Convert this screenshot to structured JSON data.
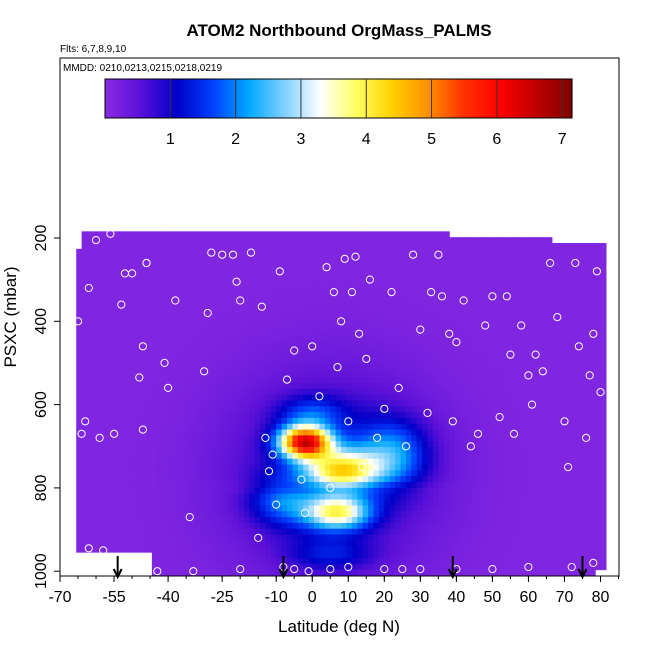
{
  "chart_data": {
    "type": "heatmap",
    "title": "ATOM2 Northbound OrgMass_PALMS",
    "subtitle_flights": "Flts: 6,7,8,9,10",
    "subtitle_dates": "MMDD: 0210,0213,0215,0218,0219",
    "xlabel": "Latitude (deg N)",
    "ylabel": "PSXC (mbar)",
    "xlim": [
      -70,
      85
    ],
    "ylim": [
      1010,
      0
    ],
    "x_ticks": [
      -70,
      -55,
      -40,
      -25,
      -10,
      0,
      10,
      20,
      30,
      40,
      50,
      60,
      70,
      80
    ],
    "x_tick_labels": [
      "-70",
      "-55",
      "-40",
      "-25",
      "-10",
      "0",
      "10",
      "20",
      "30",
      "40",
      "50",
      "60",
      "70",
      "80"
    ],
    "y_ticks": [
      200,
      400,
      600,
      800,
      1000
    ],
    "y_tick_labels": [
      "200",
      "400",
      "600",
      "800",
      "1000"
    ],
    "colorbar": {
      "min": 0,
      "max": 7.15,
      "ticks": [
        1,
        2,
        3,
        4,
        5,
        6,
        7
      ],
      "tick_labels": [
        "1",
        "2",
        "3",
        "4",
        "5",
        "6",
        "7"
      ],
      "colors": [
        "#8a2be2",
        "#5a10d8",
        "#0000c8",
        "#0040ff",
        "#00a8ff",
        "#80d0ff",
        "#ffffff",
        "#ffff60",
        "#ffd000",
        "#ff9000",
        "#ff3000",
        "#ff0000",
        "#c00000",
        "#800000"
      ]
    },
    "profile_markers_lat": [
      -54,
      -8,
      39,
      75
    ],
    "profiles": [
      {
        "lat": -67,
        "p": 235
      },
      {
        "lat": -66,
        "p": 215
      },
      {
        "lat": -65,
        "p": 400
      },
      {
        "lat": -64,
        "p": 670
      },
      {
        "lat": -63,
        "p": 640
      },
      {
        "lat": -62,
        "p": 945
      },
      {
        "lat": -62,
        "p": 320
      },
      {
        "lat": -60,
        "p": 205
      },
      {
        "lat": -59,
        "p": 680
      },
      {
        "lat": -58,
        "p": 950
      },
      {
        "lat": -56,
        "p": 190
      },
      {
        "lat": -55,
        "p": 670
      },
      {
        "lat": -53,
        "p": 360
      },
      {
        "lat": -52,
        "p": 285
      },
      {
        "lat": -50,
        "p": 285
      },
      {
        "lat": -48,
        "p": 535
      },
      {
        "lat": -47,
        "p": 460
      },
      {
        "lat": -47,
        "p": 660
      },
      {
        "lat": -46,
        "p": 260
      },
      {
        "lat": -46,
        "p": 260
      },
      {
        "lat": -41,
        "p": 500
      },
      {
        "lat": -40,
        "p": 560
      },
      {
        "lat": -38,
        "p": 350
      },
      {
        "lat": -34,
        "p": 870
      },
      {
        "lat": -30,
        "p": 520
      },
      {
        "lat": -29,
        "p": 380
      },
      {
        "lat": -28,
        "p": 235
      },
      {
        "lat": -25,
        "p": 240
      },
      {
        "lat": -22,
        "p": 240
      },
      {
        "lat": -21,
        "p": 305
      },
      {
        "lat": -20,
        "p": 350
      },
      {
        "lat": -17,
        "p": 235
      },
      {
        "lat": -15,
        "p": 920
      },
      {
        "lat": -14,
        "p": 365
      },
      {
        "lat": -13,
        "p": 680
      },
      {
        "lat": -12,
        "p": 760
      },
      {
        "lat": -11,
        "p": 720
      },
      {
        "lat": -10,
        "p": 840
      },
      {
        "lat": -9,
        "p": 280
      },
      {
        "lat": -7,
        "p": 540
      },
      {
        "lat": -5,
        "p": 470
      },
      {
        "lat": -3,
        "p": 780
      },
      {
        "lat": -2,
        "p": 860
      },
      {
        "lat": 0,
        "p": 460
      },
      {
        "lat": 2,
        "p": 580
      },
      {
        "lat": 4,
        "p": 270
      },
      {
        "lat": 5,
        "p": 800
      },
      {
        "lat": 6,
        "p": 330
      },
      {
        "lat": 7,
        "p": 510
      },
      {
        "lat": 8,
        "p": 400
      },
      {
        "lat": 9,
        "p": 250
      },
      {
        "lat": 10,
        "p": 640
      },
      {
        "lat": 11,
        "p": 330
      },
      {
        "lat": 12,
        "p": 245
      },
      {
        "lat": 13,
        "p": 430
      },
      {
        "lat": 14,
        "p": 750
      },
      {
        "lat": 15,
        "p": 490
      },
      {
        "lat": 16,
        "p": 300
      },
      {
        "lat": 18,
        "p": 680
      },
      {
        "lat": 20,
        "p": 610
      },
      {
        "lat": 22,
        "p": 330
      },
      {
        "lat": 24,
        "p": 560
      },
      {
        "lat": 26,
        "p": 700
      },
      {
        "lat": 28,
        "p": 240
      },
      {
        "lat": 30,
        "p": 420
      },
      {
        "lat": 32,
        "p": 620
      },
      {
        "lat": 33,
        "p": 330
      },
      {
        "lat": 35,
        "p": 240
      },
      {
        "lat": 36,
        "p": 340
      },
      {
        "lat": 38,
        "p": 430
      },
      {
        "lat": 39,
        "p": 640
      },
      {
        "lat": 40,
        "p": 450
      },
      {
        "lat": 42,
        "p": 350
      },
      {
        "lat": 44,
        "p": 700
      },
      {
        "lat": 46,
        "p": 670
      },
      {
        "lat": 48,
        "p": 410
      },
      {
        "lat": 50,
        "p": 340
      },
      {
        "lat": 52,
        "p": 630
      },
      {
        "lat": 54,
        "p": 340
      },
      {
        "lat": 55,
        "p": 480
      },
      {
        "lat": 56,
        "p": 670
      },
      {
        "lat": 58,
        "p": 410
      },
      {
        "lat": 60,
        "p": 530
      },
      {
        "lat": 61,
        "p": 600
      },
      {
        "lat": 62,
        "p": 480
      },
      {
        "lat": 64,
        "p": 520
      },
      {
        "lat": 66,
        "p": 260
      },
      {
        "lat": 68,
        "p": 390
      },
      {
        "lat": 70,
        "p": 640
      },
      {
        "lat": 71,
        "p": 750
      },
      {
        "lat": 73,
        "p": 260
      },
      {
        "lat": 74,
        "p": 460
      },
      {
        "lat": 76,
        "p": 680
      },
      {
        "lat": 77,
        "p": 530
      },
      {
        "lat": 78,
        "p": 430
      },
      {
        "lat": 79,
        "p": 280
      },
      {
        "lat": 80,
        "p": 570
      },
      {
        "lat": 78,
        "p": 980
      },
      {
        "lat": 72,
        "p": 990
      },
      {
        "lat": 60,
        "p": 990
      },
      {
        "lat": 50,
        "p": 995
      },
      {
        "lat": 40,
        "p": 995
      },
      {
        "lat": 30,
        "p": 995
      },
      {
        "lat": 25,
        "p": 995
      },
      {
        "lat": 20,
        "p": 995
      },
      {
        "lat": 10,
        "p": 990
      },
      {
        "lat": 5,
        "p": 995
      },
      {
        "lat": -1,
        "p": 1000
      },
      {
        "lat": -5,
        "p": 995
      },
      {
        "lat": -8,
        "p": 990
      },
      {
        "lat": -20,
        "p": 995
      },
      {
        "lat": -33,
        "p": 1000
      },
      {
        "lat": -43,
        "p": 1000
      }
    ]
  }
}
